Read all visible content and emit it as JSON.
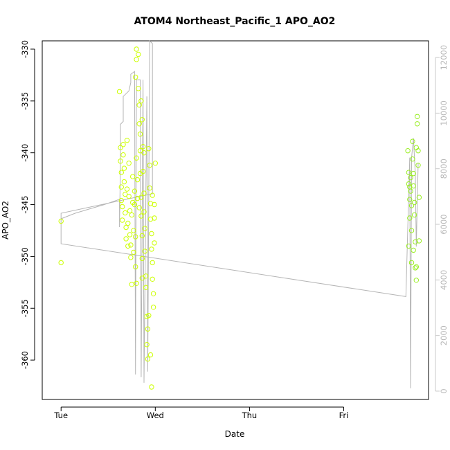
{
  "chart_data": {
    "type": "scatter",
    "title": "ATOM4 Northeast_Pacific_1 APO_AO2",
    "xlabel": "Date",
    "ylabel": "APO_AO2",
    "x_ticks": [
      "Tue",
      "Wed",
      "Thu",
      "Fri"
    ],
    "x_tick_positions_days": [
      0,
      1,
      2,
      3
    ],
    "xlim_days": [
      -0.2,
      3.9
    ],
    "ylim": [
      -363.8,
      -329.2
    ],
    "y_ticks": [
      -330,
      -335,
      -340,
      -345,
      -350,
      -355,
      -360
    ],
    "y2lim": [
      -300,
      12600
    ],
    "y2_ticks": [
      0,
      2000,
      4000,
      6000,
      8000,
      10000,
      12000
    ],
    "grid": false,
    "point_colors": {
      "early": "#ccff00",
      "late": "#99ee22"
    },
    "line_color": "#b5b5b5",
    "x_unit_note": "fraction of day after Tue 00:00",
    "series": [
      {
        "axis": "left",
        "points": [
          [
            0.0,
            -346.6
          ],
          [
            0.0,
            -350.6
          ],
          [
            0.62,
            -334.1
          ],
          [
            0.63,
            -339.5
          ],
          [
            0.63,
            -340.8
          ],
          [
            0.64,
            -341.9
          ],
          [
            0.64,
            -343.3
          ],
          [
            0.64,
            -344.6
          ],
          [
            0.65,
            -345.2
          ],
          [
            0.65,
            -346.5
          ],
          [
            0.66,
            -339.2
          ],
          [
            0.66,
            -340.2
          ],
          [
            0.67,
            -341.5
          ],
          [
            0.67,
            -342.8
          ],
          [
            0.68,
            -344.0
          ],
          [
            0.68,
            -345.8
          ],
          [
            0.69,
            -347.2
          ],
          [
            0.69,
            -348.3
          ],
          [
            0.7,
            -338.8
          ],
          [
            0.7,
            -343.5
          ],
          [
            0.71,
            -346.8
          ],
          [
            0.71,
            -349.0
          ],
          [
            0.72,
            -341.0
          ],
          [
            0.72,
            -344.2
          ],
          [
            0.73,
            -345.6
          ],
          [
            0.73,
            -347.9
          ],
          [
            0.74,
            -348.9
          ],
          [
            0.74,
            -350.1
          ],
          [
            0.75,
            -352.7
          ],
          [
            0.75,
            -346.0
          ],
          [
            0.76,
            -342.3
          ],
          [
            0.76,
            -344.8
          ],
          [
            0.77,
            -347.5
          ],
          [
            0.77,
            -349.6
          ],
          [
            0.78,
            -343.7
          ],
          [
            0.78,
            -345.0
          ],
          [
            0.79,
            -348.1
          ],
          [
            0.79,
            -351.0
          ],
          [
            0.8,
            -352.6
          ],
          [
            0.8,
            -340.5
          ],
          [
            0.81,
            -342.6
          ],
          [
            0.81,
            -344.4
          ],
          [
            0.8,
            -330.0
          ],
          [
            0.8,
            -331.0
          ],
          [
            0.79,
            -332.7
          ],
          [
            0.82,
            -330.5
          ],
          [
            0.82,
            -333.8
          ],
          [
            0.83,
            -335.4
          ],
          [
            0.83,
            -337.2
          ],
          [
            0.84,
            -339.8
          ],
          [
            0.84,
            -342.0
          ],
          [
            0.85,
            -344.3
          ],
          [
            0.85,
            -346.1
          ],
          [
            0.86,
            -348.0
          ],
          [
            0.86,
            -350.2
          ],
          [
            0.87,
            -339.4
          ],
          [
            0.87,
            -341.8
          ],
          [
            0.88,
            -343.9
          ],
          [
            0.88,
            -345.7
          ],
          [
            0.89,
            -347.3
          ],
          [
            0.89,
            -349.5
          ],
          [
            0.9,
            -351.9
          ],
          [
            0.9,
            -353.0
          ],
          [
            0.91,
            -355.8
          ],
          [
            0.91,
            -358.5
          ],
          [
            0.92,
            -359.9
          ],
          [
            0.92,
            -357.0
          ],
          [
            0.93,
            -355.7
          ],
          [
            0.93,
            -339.6
          ],
          [
            0.94,
            -341.2
          ],
          [
            0.94,
            -343.4
          ],
          [
            0.95,
            -344.9
          ],
          [
            0.95,
            -346.4
          ],
          [
            0.96,
            -347.8
          ],
          [
            0.96,
            -349.3
          ],
          [
            0.97,
            -350.6
          ],
          [
            0.97,
            -352.2
          ],
          [
            0.98,
            -353.6
          ],
          [
            0.98,
            -354.9
          ],
          [
            0.99,
            -345.0
          ],
          [
            0.99,
            -346.3
          ],
          [
            1.0,
            -341.0
          ],
          [
            0.95,
            -359.5
          ],
          [
            0.96,
            -362.6
          ],
          [
            0.85,
            -335.0
          ],
          [
            0.86,
            -336.8
          ],
          [
            0.84,
            -338.2
          ],
          [
            0.88,
            -340.0
          ],
          [
            0.97,
            -344.1
          ],
          [
            0.99,
            -348.7
          ],
          [
            0.83,
            -345.3
          ],
          [
            0.86,
            -352.1
          ],
          [
            3.68,
            -339.8
          ],
          [
            3.69,
            -341.9
          ],
          [
            3.69,
            -343.0
          ],
          [
            3.7,
            -344.5
          ],
          [
            3.7,
            -346.3
          ],
          [
            3.71,
            -342.4
          ],
          [
            3.71,
            -343.7
          ],
          [
            3.72,
            -345.1
          ],
          [
            3.72,
            -347.5
          ],
          [
            3.73,
            -338.9
          ],
          [
            3.73,
            -340.6
          ],
          [
            3.74,
            -342.0
          ],
          [
            3.74,
            -343.2
          ],
          [
            3.75,
            -344.8
          ],
          [
            3.75,
            -346.0
          ],
          [
            3.76,
            -348.6
          ],
          [
            3.76,
            -351.1
          ],
          [
            3.77,
            -352.3
          ],
          [
            3.77,
            -339.5
          ],
          [
            3.78,
            -336.5
          ],
          [
            3.78,
            -337.2
          ],
          [
            3.79,
            -339.8
          ],
          [
            3.79,
            -341.2
          ],
          [
            3.8,
            -344.3
          ],
          [
            3.8,
            -348.5
          ],
          [
            3.69,
            -349.0
          ],
          [
            3.72,
            -350.6
          ],
          [
            3.74,
            -349.4
          ],
          [
            3.77,
            -351.0
          ],
          [
            3.7,
            -343.3
          ]
        ]
      },
      {
        "axis": "right",
        "line": [
          [
            0.0,
            6200
          ],
          [
            0.15,
            6400
          ],
          [
            0.3,
            6550
          ],
          [
            0.45,
            6700
          ],
          [
            0.62,
            6900
          ],
          [
            0.62,
            5900
          ],
          [
            0.63,
            8300
          ],
          [
            0.63,
            9600
          ],
          [
            0.66,
            9700
          ],
          [
            0.66,
            10600
          ],
          [
            0.72,
            10800
          ],
          [
            0.74,
            11100
          ],
          [
            0.74,
            11400
          ],
          [
            0.78,
            11500
          ],
          [
            0.79,
            600
          ],
          [
            0.8,
            11200
          ],
          [
            0.84,
            11200
          ],
          [
            0.85,
            500
          ],
          [
            0.87,
            11200
          ],
          [
            0.88,
            300
          ],
          [
            0.91,
            10600
          ],
          [
            0.92,
            700
          ],
          [
            0.94,
            12600
          ],
          [
            0.97,
            12500
          ],
          [
            0.97,
            7100
          ],
          [
            0.0,
            6400
          ],
          [
            0.0,
            5300
          ],
          [
            3.66,
            3400
          ],
          [
            3.7,
            8400
          ],
          [
            3.71,
            100
          ],
          [
            3.72,
            8400
          ],
          [
            3.74,
            9100
          ],
          [
            3.76,
            7800
          ],
          [
            3.77,
            5200
          ],
          [
            3.79,
            8200
          ]
        ]
      }
    ]
  }
}
